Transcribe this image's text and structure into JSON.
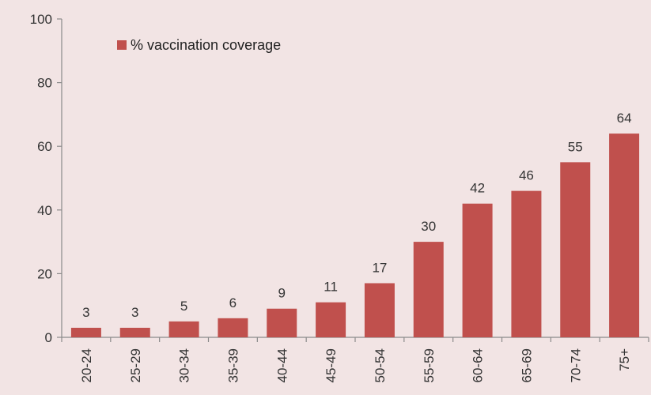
{
  "chart_data": {
    "type": "bar",
    "categories": [
      "20-24",
      "25-29",
      "30-34",
      "35-39",
      "40-44",
      "45-49",
      "50-54",
      "55-59",
      "60-64",
      "65-69",
      "70-74",
      "75+"
    ],
    "series": [
      {
        "name": "% vaccination coverage",
        "values": [
          3,
          3,
          5,
          6,
          9,
          11,
          17,
          30,
          42,
          46,
          55,
          64
        ]
      }
    ],
    "ylim": [
      0,
      100
    ],
    "yticks": [
      0,
      20,
      40,
      60,
      80,
      100
    ],
    "grid": false,
    "legend_position": "top-left",
    "colors": {
      "bar": "#c0504d"
    }
  }
}
